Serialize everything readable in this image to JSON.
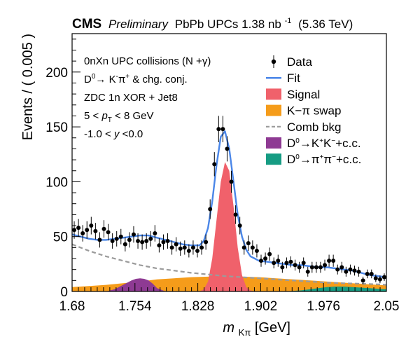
{
  "header": {
    "cms": "CMS",
    "preliminary": "Preliminary",
    "dataset_pre": "PbPb UPCs 1.38 nb",
    "lumi_sup": "-1",
    "energy": "(5.36 TeV)"
  },
  "annotations": [
    {
      "id": "coll",
      "parts": [
        {
          "t": "0nXn UPC collisions (N +γ)"
        }
      ]
    },
    {
      "id": "decay",
      "parts": [
        {
          "t": "D"
        },
        {
          "t": "0",
          "s": "sup"
        },
        {
          "t": "→ K"
        },
        {
          "t": "-",
          "s": "sup"
        },
        {
          "t": "π"
        },
        {
          "t": "+",
          "s": "sup"
        },
        {
          "t": " & chg. conj."
        }
      ]
    },
    {
      "id": "trig",
      "parts": [
        {
          "t": "ZDC 1n XOR + Jet8"
        }
      ]
    },
    {
      "id": "pt",
      "parts": [
        {
          "t": "5 < "
        },
        {
          "t": "p",
          "s": "it"
        },
        {
          "t": "T",
          "s": "sub"
        },
        {
          "t": " < 8 GeV"
        }
      ]
    },
    {
      "id": "y",
      "parts": [
        {
          "t": "-1.0 < "
        },
        {
          "t": "y",
          "s": "it"
        },
        {
          "t": " <0.0"
        }
      ]
    }
  ],
  "legend": [
    {
      "key": "data",
      "parts": [
        {
          "t": "Data"
        }
      ],
      "marker": "point",
      "color": "#000000"
    },
    {
      "key": "fit",
      "parts": [
        {
          "t": "Fit"
        }
      ],
      "marker": "line",
      "color": "#4a86e8"
    },
    {
      "key": "signal",
      "parts": [
        {
          "t": "Signal"
        }
      ],
      "marker": "box",
      "color": "#f0616b"
    },
    {
      "key": "swap",
      "parts": [
        {
          "t": "K−π swap"
        }
      ],
      "marker": "box",
      "color": "#f59c1a"
    },
    {
      "key": "comb",
      "parts": [
        {
          "t": "Comb bkg"
        }
      ],
      "marker": "dash",
      "color": "#9b9b9b"
    },
    {
      "key": "kk",
      "parts": [
        {
          "t": "D"
        },
        {
          "t": "0",
          "s": "sup"
        },
        {
          "t": "→K"
        },
        {
          "t": "+",
          "s": "sup"
        },
        {
          "t": "K"
        },
        {
          "t": "−",
          "s": "sup"
        },
        {
          "t": "+c.c."
        }
      ],
      "marker": "box",
      "color": "#8e3a93"
    },
    {
      "key": "pipi",
      "parts": [
        {
          "t": "D"
        },
        {
          "t": "0",
          "s": "sup"
        },
        {
          "t": "→π"
        },
        {
          "t": "+",
          "s": "sup"
        },
        {
          "t": "π"
        },
        {
          "t": "−",
          "s": "sup"
        },
        {
          "t": "+c.c."
        }
      ],
      "marker": "box",
      "color": "#169c83"
    }
  ],
  "chart_data": {
    "type": "scatter",
    "xlabel_var": "m",
    "xlabel_sub": "Kπ",
    "xlabel_unit": " [GeV]",
    "ylabel": "Events / ( 0.005 )",
    "xlim": [
      1.68,
      2.05
    ],
    "ylim": [
      0,
      235
    ],
    "xticks": [
      "1.68",
      "1.754",
      "1.828",
      "1.902",
      "1.976",
      "2.05"
    ],
    "yticks": [
      "0",
      "50",
      "100",
      "150",
      "200"
    ],
    "data": {
      "x": [
        1.6825,
        1.6875,
        1.6925,
        1.6975,
        1.7025,
        1.7075,
        1.7125,
        1.7175,
        1.7225,
        1.7275,
        1.7325,
        1.7375,
        1.7425,
        1.7475,
        1.7525,
        1.7575,
        1.7625,
        1.7675,
        1.7725,
        1.7775,
        1.7825,
        1.7875,
        1.7925,
        1.7975,
        1.8025,
        1.8075,
        1.8125,
        1.8175,
        1.8225,
        1.8275,
        1.8325,
        1.8375,
        1.8425,
        1.8475,
        1.8525,
        1.8575,
        1.8625,
        1.8675,
        1.8725,
        1.8775,
        1.8825,
        1.8875,
        1.8925,
        1.8975,
        1.9025,
        1.9075,
        1.9125,
        1.9175,
        1.9225,
        1.9275,
        1.9325,
        1.9375,
        1.9425,
        1.9475,
        1.9525,
        1.9575,
        1.9625,
        1.9675,
        1.9725,
        1.9775,
        1.9825,
        1.9875,
        1.9925,
        1.9975,
        2.0025,
        2.0075,
        2.0125,
        2.0175,
        2.0225,
        2.0275,
        2.0325,
        2.0375,
        2.0425,
        2.0475
      ],
      "y": [
        56,
        58,
        53,
        56,
        60,
        55,
        47,
        57,
        54,
        46,
        48,
        50,
        43,
        47,
        52,
        46,
        45,
        46,
        48,
        53,
        42,
        45,
        46,
        40,
        43,
        39,
        40,
        37,
        40,
        37,
        40,
        45,
        75,
        116,
        148,
        148,
        130,
        100,
        70,
        60,
        40,
        44,
        40,
        37,
        28,
        30,
        34,
        26,
        28,
        22,
        26,
        27,
        24,
        22,
        26,
        18,
        22,
        22,
        22,
        24,
        28,
        28,
        20,
        22,
        18,
        20,
        19,
        18,
        10,
        16,
        16,
        12,
        11,
        13
      ],
      "err": [
        8,
        8,
        7.5,
        8,
        8,
        7.5,
        7,
        8,
        7.5,
        7,
        7,
        7,
        6.5,
        7,
        7.5,
        7,
        7,
        7,
        7,
        7.5,
        6.5,
        7,
        7,
        6.5,
        6.5,
        6.5,
        6.5,
        6,
        6.5,
        6,
        6.5,
        7,
        9,
        11,
        12,
        12,
        11.5,
        10,
        8.5,
        8,
        6.5,
        7,
        6.5,
        6,
        5.5,
        5.5,
        6,
        5,
        5.5,
        5,
        5,
        5,
        5,
        5,
        5,
        4.5,
        5,
        5,
        5,
        5,
        5.5,
        5.5,
        4.5,
        5,
        4.5,
        4.5,
        4.5,
        4.5,
        3.5,
        4,
        4,
        3.5,
        3.5,
        3.5
      ]
    },
    "fit": {
      "x": [
        1.68,
        1.69,
        1.7,
        1.71,
        1.72,
        1.73,
        1.74,
        1.75,
        1.76,
        1.77,
        1.78,
        1.79,
        1.8,
        1.81,
        1.82,
        1.83,
        1.835,
        1.84,
        1.845,
        1.85,
        1.855,
        1.86,
        1.865,
        1.87,
        1.875,
        1.88,
        1.885,
        1.89,
        1.895,
        1.9,
        1.91,
        1.92,
        1.93,
        1.94,
        1.95,
        1.96,
        1.97,
        1.98,
        1.99,
        2.0,
        2.01,
        2.02,
        2.03,
        2.04,
        2.05
      ],
      "y": [
        52,
        50,
        48,
        47,
        47,
        48,
        49,
        50,
        51,
        51,
        49,
        47,
        45,
        43,
        42,
        42,
        46,
        58,
        82,
        115,
        141,
        146,
        130,
        100,
        70,
        50,
        38,
        32,
        30,
        28,
        27,
        26,
        25,
        24,
        24,
        23,
        22,
        22,
        21,
        20,
        19,
        17,
        15,
        14,
        13
      ]
    },
    "signal": {
      "x": [
        1.83,
        1.835,
        1.84,
        1.845,
        1.85,
        1.855,
        1.86,
        1.865,
        1.87,
        1.875,
        1.88,
        1.885,
        1.89,
        1.895
      ],
      "y": [
        0,
        2,
        9,
        30,
        65,
        100,
        118,
        110,
        78,
        40,
        15,
        4,
        1,
        0
      ]
    },
    "comb": {
      "x": [
        1.68,
        1.7,
        1.72,
        1.74,
        1.76,
        1.78,
        1.8,
        1.82,
        1.84,
        1.86,
        1.88,
        1.9,
        1.92,
        1.94,
        1.96,
        1.98,
        2.0,
        2.02,
        2.04,
        2.05
      ],
      "y": [
        43,
        37,
        32,
        28,
        24,
        21,
        19,
        17,
        15.5,
        14,
        13,
        12,
        11,
        10,
        9,
        8,
        7.5,
        7,
        6.5,
        6
      ]
    },
    "swap": {
      "x": [
        1.68,
        1.7,
        1.72,
        1.74,
        1.76,
        1.78,
        1.8,
        1.82,
        1.84,
        1.86,
        1.88,
        1.9,
        1.92,
        1.94,
        1.96,
        1.98,
        2.0,
        2.02,
        2.04,
        2.05
      ],
      "y": [
        4,
        5,
        6,
        7.5,
        9,
        11,
        12,
        13,
        13.5,
        14,
        13.5,
        13,
        12,
        11,
        10,
        9,
        8,
        7,
        6,
        5.5
      ]
    },
    "kk": {
      "x": [
        1.72,
        1.73,
        1.74,
        1.75,
        1.755,
        1.76,
        1.765,
        1.77,
        1.775,
        1.78,
        1.79
      ],
      "y": [
        0,
        2,
        6,
        10,
        11.5,
        12,
        11.5,
        10,
        7,
        3,
        0
      ]
    },
    "pipi": {
      "x": [
        1.93,
        1.95,
        1.96,
        1.97,
        1.98,
        1.99,
        2.0,
        2.01,
        2.02,
        2.03,
        2.04,
        2.05
      ],
      "y": [
        0,
        1,
        2,
        3,
        4,
        4.5,
        4.5,
        4,
        3.5,
        3,
        2.5,
        2
      ]
    }
  }
}
